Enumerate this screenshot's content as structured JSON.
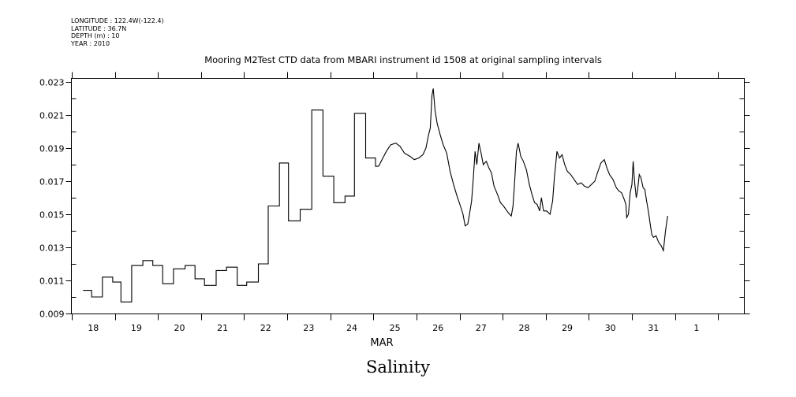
{
  "meta": {
    "longitude": "LONGITUDE : 122.4W(-122.4)",
    "latitude": "LATITUDE : 36.7N",
    "depth": "DEPTH (m) : 10",
    "year": "YEAR : 2010"
  },
  "footer_title": "Salinity",
  "chart_data": {
    "type": "line",
    "title": "Mooring M2Test CTD data from MBARI instrument id 1508 at original sampling intervals",
    "xlabel": "MAR",
    "ylabel": "",
    "x_unit": "day (March 2010; ticks at day starts)",
    "xlim": [
      18,
      33.6
    ],
    "ylim": [
      0.009,
      0.023
    ],
    "x_tick_labels": [
      "18",
      "19",
      "20",
      "21",
      "22",
      "23",
      "24",
      "25",
      "26",
      "27",
      "28",
      "29",
      "30",
      "31",
      "1"
    ],
    "x_tick_label_positions": [
      18.5,
      19.5,
      20.5,
      21.5,
      22.5,
      23.5,
      24.5,
      25.5,
      26.5,
      27.5,
      28.5,
      29.5,
      30.5,
      31.5,
      32.5
    ],
    "x_ticks": [
      18,
      19,
      20,
      21,
      22,
      23,
      24,
      25,
      26,
      27,
      28,
      29,
      30,
      31,
      32,
      33
    ],
    "y_ticks": [
      0.009,
      0.011,
      0.013,
      0.015,
      0.017,
      0.019,
      0.021,
      0.023
    ],
    "y_tick_labels": [
      "0.009",
      "0.011",
      "0.013",
      "0.015",
      "0.017",
      "0.019",
      "0.021",
      "0.023"
    ],
    "series": [
      {
        "name": "",
        "line_style": "step",
        "points": [
          [
            18.26,
            0.0104
          ],
          [
            18.46,
            0.01
          ],
          [
            18.71,
            0.0112
          ],
          [
            18.95,
            0.0109
          ],
          [
            19.14,
            0.0097
          ],
          [
            19.39,
            0.0119
          ],
          [
            19.65,
            0.0122
          ],
          [
            19.88,
            0.0119
          ],
          [
            20.11,
            0.0108
          ],
          [
            20.36,
            0.0117
          ],
          [
            20.63,
            0.0119
          ],
          [
            20.86,
            0.0111
          ],
          [
            21.08,
            0.0107
          ],
          [
            21.35,
            0.0116
          ],
          [
            21.59,
            0.0118
          ],
          [
            21.84,
            0.0107
          ],
          [
            22.06,
            0.0109
          ],
          [
            22.33,
            0.012
          ],
          [
            22.56,
            0.0155
          ],
          [
            22.82,
            0.0181
          ],
          [
            23.03,
            0.0146
          ],
          [
            23.3,
            0.0153
          ],
          [
            23.57,
            0.0213
          ],
          [
            23.83,
            0.0173
          ],
          [
            24.08,
            0.0157
          ],
          [
            24.34,
            0.0161
          ],
          [
            24.56,
            0.0211
          ],
          [
            24.82,
            0.0184
          ],
          [
            25.05,
            0.0179
          ],
          [
            25.12,
            0.0179
          ]
        ]
      },
      {
        "name": "",
        "line_style": "line",
        "points": [
          [
            25.12,
            0.0179
          ],
          [
            25.2,
            0.0183
          ],
          [
            25.3,
            0.0188
          ],
          [
            25.4,
            0.0192
          ],
          [
            25.52,
            0.0193
          ],
          [
            25.62,
            0.0191
          ],
          [
            25.72,
            0.0187
          ],
          [
            25.85,
            0.0185
          ],
          [
            25.95,
            0.0183
          ],
          [
            26.05,
            0.0184
          ],
          [
            26.15,
            0.0186
          ],
          [
            26.22,
            0.019
          ],
          [
            26.28,
            0.0198
          ],
          [
            26.32,
            0.0202
          ],
          [
            26.36,
            0.0222
          ],
          [
            26.39,
            0.0226
          ],
          [
            26.43,
            0.0213
          ],
          [
            26.48,
            0.0205
          ],
          [
            26.55,
            0.0198
          ],
          [
            26.62,
            0.0192
          ],
          [
            26.7,
            0.0187
          ],
          [
            26.78,
            0.0176
          ],
          [
            26.86,
            0.0168
          ],
          [
            26.94,
            0.0161
          ],
          [
            27.02,
            0.0155
          ],
          [
            27.08,
            0.015
          ],
          [
            27.13,
            0.0143
          ],
          [
            27.19,
            0.0144
          ],
          [
            27.23,
            0.015
          ],
          [
            27.28,
            0.0158
          ],
          [
            27.32,
            0.0172
          ],
          [
            27.36,
            0.0188
          ],
          [
            27.4,
            0.018
          ],
          [
            27.45,
            0.0193
          ],
          [
            27.5,
            0.0187
          ],
          [
            27.55,
            0.018
          ],
          [
            27.62,
            0.0182
          ],
          [
            27.68,
            0.0178
          ],
          [
            27.74,
            0.0175
          ],
          [
            27.8,
            0.0167
          ],
          [
            27.88,
            0.0162
          ],
          [
            27.95,
            0.0157
          ],
          [
            28.02,
            0.0155
          ],
          [
            28.1,
            0.0152
          ],
          [
            28.16,
            0.015
          ],
          [
            28.2,
            0.0149
          ],
          [
            28.24,
            0.0155
          ],
          [
            28.28,
            0.017
          ],
          [
            28.32,
            0.0188
          ],
          [
            28.36,
            0.0193
          ],
          [
            28.42,
            0.0185
          ],
          [
            28.48,
            0.0182
          ],
          [
            28.55,
            0.0177
          ],
          [
            28.62,
            0.0168
          ],
          [
            28.68,
            0.0162
          ],
          [
            28.74,
            0.0157
          ],
          [
            28.8,
            0.0156
          ],
          [
            28.86,
            0.0152
          ],
          [
            28.9,
            0.016
          ],
          [
            28.95,
            0.0152
          ],
          [
            29.02,
            0.0152
          ],
          [
            29.1,
            0.015
          ],
          [
            29.16,
            0.0158
          ],
          [
            29.2,
            0.0172
          ],
          [
            29.26,
            0.0188
          ],
          [
            29.32,
            0.0184
          ],
          [
            29.38,
            0.0186
          ],
          [
            29.44,
            0.018
          ],
          [
            29.5,
            0.0176
          ],
          [
            29.58,
            0.0174
          ],
          [
            29.66,
            0.0171
          ],
          [
            29.74,
            0.0168
          ],
          [
            29.82,
            0.0169
          ],
          [
            29.9,
            0.0167
          ],
          [
            29.98,
            0.0166
          ],
          [
            30.06,
            0.0168
          ],
          [
            30.14,
            0.017
          ],
          [
            30.2,
            0.0175
          ],
          [
            30.28,
            0.0181
          ],
          [
            30.36,
            0.0183
          ],
          [
            30.42,
            0.0178
          ],
          [
            30.48,
            0.0174
          ],
          [
            30.56,
            0.0171
          ],
          [
            30.64,
            0.0166
          ],
          [
            30.7,
            0.0164
          ],
          [
            30.76,
            0.0163
          ],
          [
            30.82,
            0.0159
          ],
          [
            30.86,
            0.0156
          ],
          [
            30.88,
            0.0148
          ],
          [
            30.92,
            0.015
          ],
          [
            30.96,
            0.0163
          ],
          [
            31.0,
            0.0168
          ],
          [
            31.03,
            0.0182
          ],
          [
            31.06,
            0.017
          ],
          [
            31.1,
            0.016
          ],
          [
            31.13,
            0.0164
          ],
          [
            31.17,
            0.0174
          ],
          [
            31.21,
            0.0172
          ],
          [
            31.26,
            0.0166
          ],
          [
            31.3,
            0.0165
          ],
          [
            31.34,
            0.0158
          ],
          [
            31.38,
            0.0152
          ],
          [
            31.42,
            0.0145
          ],
          [
            31.46,
            0.0138
          ],
          [
            31.5,
            0.0136
          ],
          [
            31.56,
            0.0137
          ],
          [
            31.62,
            0.0133
          ],
          [
            31.68,
            0.0131
          ],
          [
            31.73,
            0.0128
          ],
          [
            31.78,
            0.014
          ],
          [
            31.83,
            0.0149
          ]
        ]
      }
    ],
    "grid": false,
    "legend": "none",
    "colors": {
      "line": "#000000",
      "axes": "#000000"
    }
  }
}
